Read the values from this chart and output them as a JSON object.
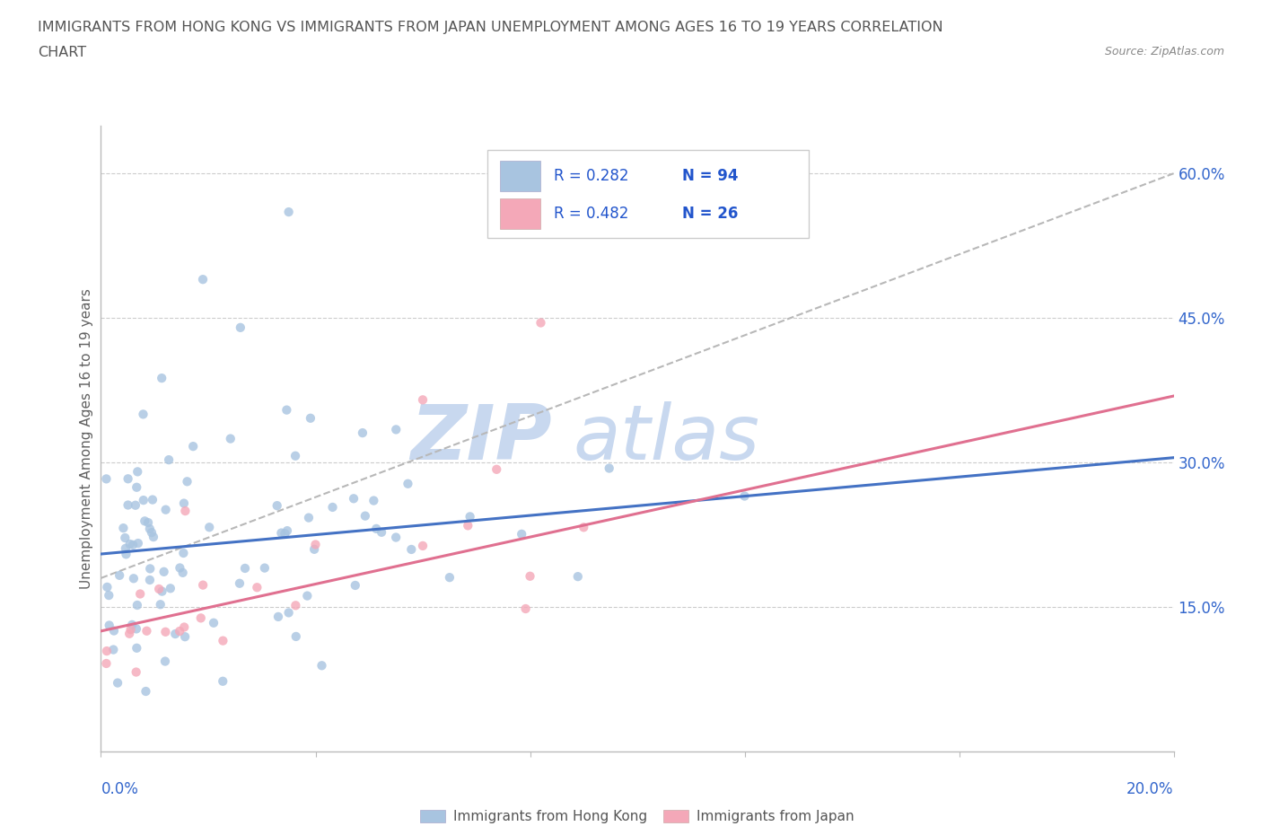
{
  "title_line1": "IMMIGRANTS FROM HONG KONG VS IMMIGRANTS FROM JAPAN UNEMPLOYMENT AMONG AGES 16 TO 19 YEARS CORRELATION",
  "title_line2": "CHART",
  "source_text": "Source: ZipAtlas.com",
  "ylabel": "Unemployment Among Ages 16 to 19 years",
  "legend_hk": "Immigrants from Hong Kong",
  "legend_jp": "Immigrants from Japan",
  "legend_r_hk": "R = 0.282",
  "legend_n_hk": "N = 94",
  "legend_r_jp": "R = 0.482",
  "legend_n_jp": "N = 26",
  "color_hk": "#a8c4e0",
  "color_jp": "#f4a8b8",
  "color_line_hk": "#4472c4",
  "color_line_jp": "#e07090",
  "color_trendline": "#b8b8b8",
  "xmin": 0.0,
  "xmax": 0.2,
  "ymin": 0.0,
  "ymax": 0.65,
  "yticks": [
    0.15,
    0.3,
    0.45,
    0.6
  ],
  "ytick_labels": [
    "15.0%",
    "30.0%",
    "45.0%",
    "60.0%"
  ],
  "xtick_labels": [
    "0.0%",
    "20.0%"
  ],
  "watermark_zip_color": "#c8d8ef",
  "watermark_atlas_color": "#c8d8ef",
  "title_color": "#555555",
  "source_color": "#888888",
  "axis_label_color": "#3366cc",
  "legend_text_color": "#2255cc"
}
